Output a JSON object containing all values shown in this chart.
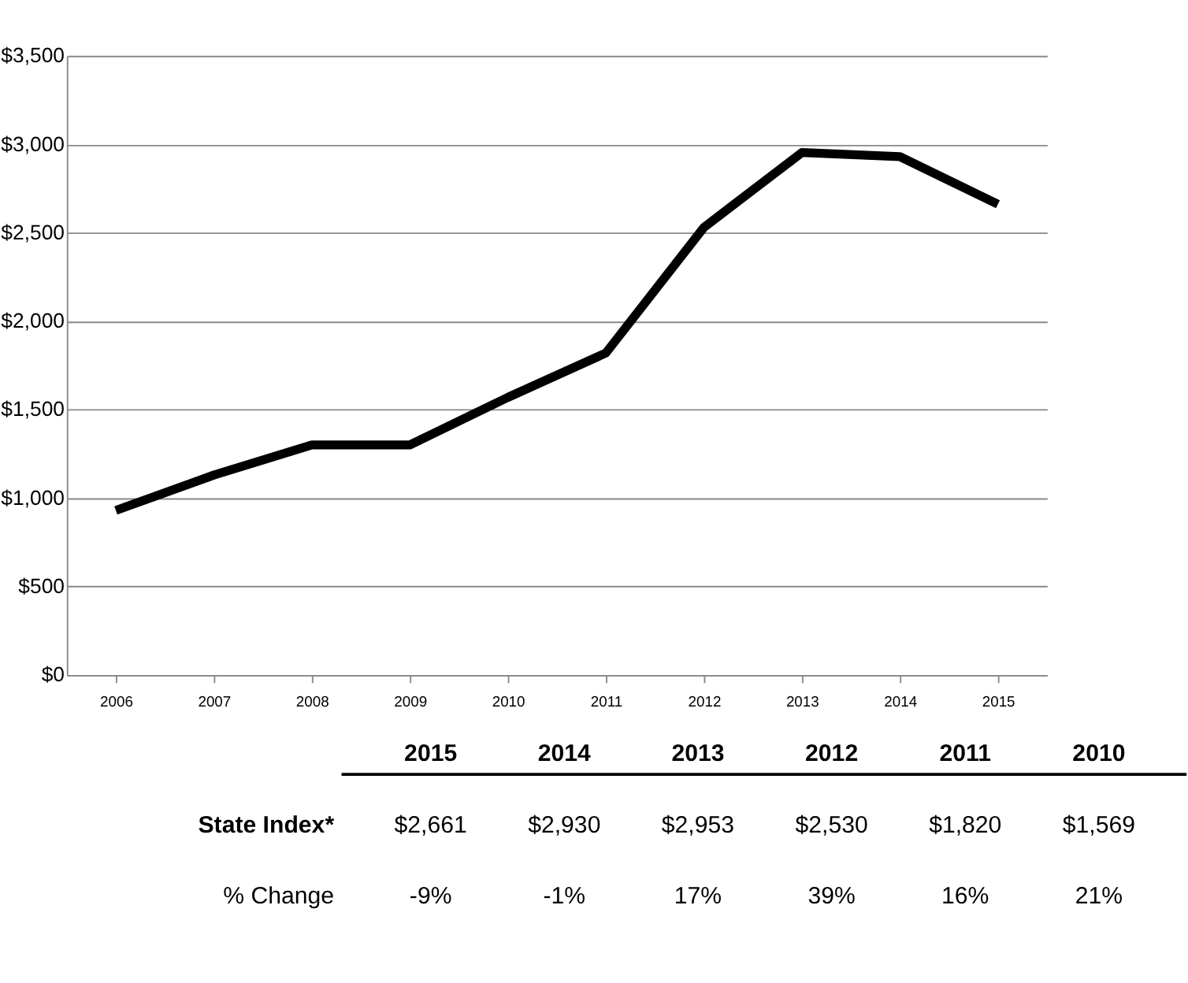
{
  "chart_data": {
    "type": "line",
    "categories": [
      "2006",
      "2007",
      "2008",
      "2009",
      "2010",
      "2011",
      "2012",
      "2013",
      "2014",
      "2015"
    ],
    "series": [
      {
        "color": "#000000",
        "values": [
          930,
          1130,
          1300,
          1300,
          1569,
          1820,
          2530,
          2953,
          2930,
          2661
        ]
      }
    ],
    "value_labels": [
      null,
      null,
      null,
      null,
      "$1,569",
      "$1,820",
      "$2,530",
      "$2,953",
      "$2,930",
      "$2,661"
    ],
    "ylim": [
      0,
      3500
    ],
    "yticks": [
      {
        "value": 0,
        "label": "$0"
      },
      {
        "value": 500,
        "label": "$500"
      },
      {
        "value": 1000,
        "label": "$1,000"
      },
      {
        "value": 1500,
        "label": "$1,500"
      },
      {
        "value": 2000,
        "label": "$2,000"
      },
      {
        "value": 2500,
        "label": "$2,500"
      },
      {
        "value": 3000,
        "label": "$3,000"
      },
      {
        "value": 3500,
        "label": "$3,500"
      }
    ],
    "grid": "y",
    "marker": "none",
    "line_style": "solid",
    "annotations": [
      "State Index*",
      "% Change",
      "-9%",
      "-1%",
      "17%",
      "39%",
      "16%",
      "21%"
    ]
  }
}
